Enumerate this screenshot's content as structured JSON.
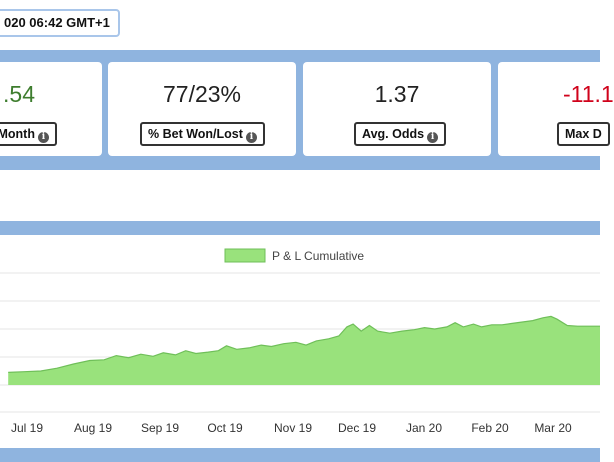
{
  "header": {
    "date_text": "020 06:42 GMT+1"
  },
  "stats": [
    {
      "value": ".54",
      "label": "/Month",
      "value_color": "#3e7d2e"
    },
    {
      "value": "77/23%",
      "label": "% Bet Won/Lost",
      "value_color": "#222222"
    },
    {
      "value": "1.37",
      "label": "Avg. Odds",
      "value_color": "#222222"
    },
    {
      "value": "-11.1",
      "label": "Max D",
      "value_color": "#d0021b"
    }
  ],
  "icons": {
    "info": "info-icon"
  },
  "colors": {
    "band": "#8fb4df",
    "area_fill": "#99e27c",
    "area_line": "#6fbf59",
    "negative": "#d0021b",
    "positive": "#3e7d2e"
  },
  "chart_data": {
    "type": "area",
    "legend": {
      "label": "P & L Cumulative",
      "position": "top-center"
    },
    "x_ticks": [
      "Jul 19",
      "Aug 19",
      "Sep 19",
      "Oct 19",
      "Nov 19",
      "Dec 19",
      "Jan 20",
      "Feb 20",
      "Mar 20"
    ],
    "grid": true,
    "series": [
      {
        "name": "P & L Cumulative",
        "points": [
          [
            "2019-06-20",
            0.9
          ],
          [
            "2019-06-28",
            0.95
          ],
          [
            "2019-07-06",
            1.0
          ],
          [
            "2019-07-14",
            1.2
          ],
          [
            "2019-07-22",
            1.5
          ],
          [
            "2019-07-30",
            1.75
          ],
          [
            "2019-08-06",
            1.8
          ],
          [
            "2019-08-12",
            2.1
          ],
          [
            "2019-08-18",
            1.95
          ],
          [
            "2019-08-24",
            2.2
          ],
          [
            "2019-08-30",
            2.05
          ],
          [
            "2019-09-04",
            2.3
          ],
          [
            "2019-09-10",
            2.15
          ],
          [
            "2019-09-15",
            2.45
          ],
          [
            "2019-09-20",
            2.25
          ],
          [
            "2019-09-26",
            2.35
          ],
          [
            "2019-10-01",
            2.45
          ],
          [
            "2019-10-05",
            2.8
          ],
          [
            "2019-10-10",
            2.55
          ],
          [
            "2019-10-16",
            2.65
          ],
          [
            "2019-10-22",
            2.85
          ],
          [
            "2019-10-27",
            2.75
          ],
          [
            "2019-11-02",
            2.95
          ],
          [
            "2019-11-08",
            3.05
          ],
          [
            "2019-11-13",
            2.85
          ],
          [
            "2019-11-18",
            3.15
          ],
          [
            "2019-11-24",
            3.3
          ],
          [
            "2019-11-29",
            3.5
          ],
          [
            "2019-12-03",
            4.15
          ],
          [
            "2019-12-06",
            4.35
          ],
          [
            "2019-12-10",
            3.85
          ],
          [
            "2019-12-14",
            4.25
          ],
          [
            "2019-12-18",
            3.85
          ],
          [
            "2019-12-24",
            3.7
          ],
          [
            "2019-12-30",
            3.85
          ],
          [
            "2020-01-05",
            3.95
          ],
          [
            "2020-01-10",
            4.1
          ],
          [
            "2020-01-15",
            4.0
          ],
          [
            "2020-01-21",
            4.15
          ],
          [
            "2020-01-25",
            4.45
          ],
          [
            "2020-01-29",
            4.15
          ],
          [
            "2020-02-03",
            4.35
          ],
          [
            "2020-02-07",
            4.15
          ],
          [
            "2020-02-12",
            4.3
          ],
          [
            "2020-02-17",
            4.3
          ],
          [
            "2020-02-22",
            4.4
          ],
          [
            "2020-02-27",
            4.5
          ],
          [
            "2020-03-03",
            4.6
          ],
          [
            "2020-03-08",
            4.8
          ],
          [
            "2020-03-12",
            4.9
          ],
          [
            "2020-03-15",
            4.7
          ],
          [
            "2020-03-20",
            4.25
          ],
          [
            "2020-03-25",
            4.2
          ],
          [
            "2020-03-31",
            4.2
          ],
          [
            "2020-04-05",
            4.2
          ]
        ]
      }
    ]
  }
}
